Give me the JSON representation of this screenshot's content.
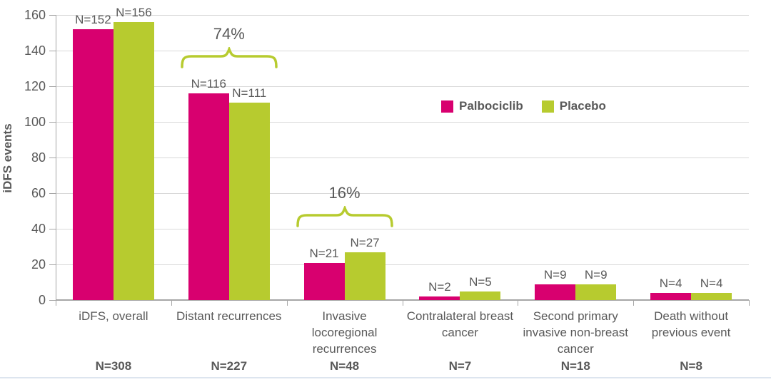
{
  "chart_data": {
    "type": "bar",
    "title": "",
    "ylabel": "iDFS events",
    "ylim": [
      0,
      160
    ],
    "ytick_step": 20,
    "grid": true,
    "legend_position": "center-right",
    "categories": [
      {
        "lines": [
          "iDFS, overall"
        ],
        "total": "N=308"
      },
      {
        "lines": [
          "Distant recurrences"
        ],
        "total": "N=227"
      },
      {
        "lines": [
          "Invasive",
          "locoregional",
          "recurrences"
        ],
        "total": "N=48"
      },
      {
        "lines": [
          "Contralateral breast",
          "cancer"
        ],
        "total": "N=7"
      },
      {
        "lines": [
          "Second primary",
          "invasive non-breast",
          "cancer"
        ],
        "total": "N=18"
      },
      {
        "lines": [
          "Death without",
          "previous event"
        ],
        "total": "N=8"
      }
    ],
    "series": [
      {
        "name": "Palbociclib",
        "color": "#d8006f",
        "values": [
          152,
          116,
          21,
          2,
          9,
          4
        ],
        "bar_labels": [
          "N=152",
          "N=116",
          "N=21",
          "N=2",
          "N=9",
          "N=4"
        ]
      },
      {
        "name": "Placebo",
        "color": "#b7cb2f",
        "values": [
          156,
          111,
          27,
          5,
          9,
          4
        ],
        "bar_labels": [
          "N=156",
          "N=111",
          "N=27",
          "N=5",
          "N=9",
          "N=4"
        ]
      }
    ],
    "annotations": [
      {
        "label": "74%",
        "category_index": 1
      },
      {
        "label": "16%",
        "category_index": 2
      }
    ],
    "yticks": [
      "0",
      "20",
      "40",
      "60",
      "80",
      "100",
      "120",
      "140",
      "160"
    ]
  },
  "colors": {
    "palbociclib": "#d8006f",
    "placebo": "#b7cb2f",
    "text": "#595959",
    "gridline": "#d9d9d9",
    "axis": "#a6a6a6",
    "brace": "#b7cb2f",
    "bottom_rule": "#dde5ef"
  }
}
